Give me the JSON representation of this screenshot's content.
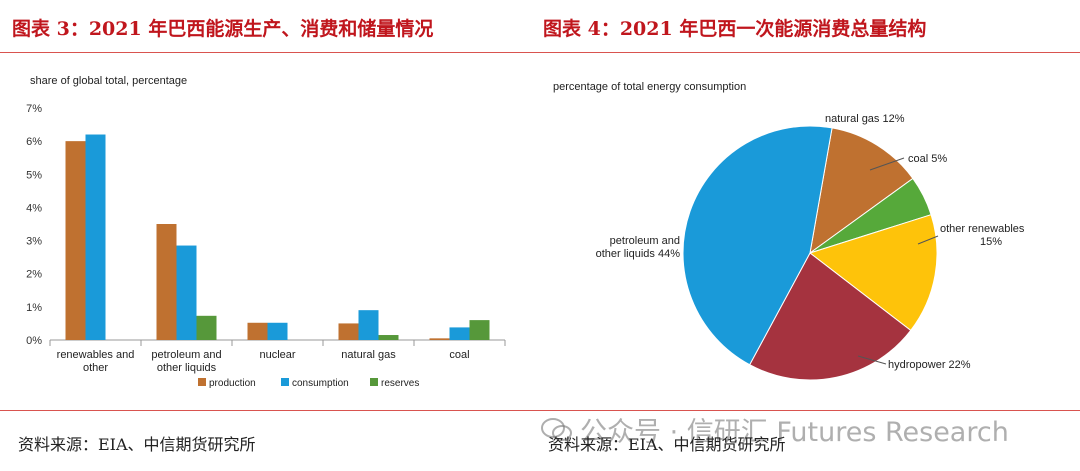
{
  "figures": {
    "left_title": "图表 3：2021 年巴西能源生产、消费和储量情况",
    "right_title": "图表 4：2021 年巴西一次能源消费总量结构",
    "left_source": "资料来源：EIA、中信期货研究所",
    "right_source": "资料来源：EIA、中信期货研究所",
    "watermark": "公众号 · 信研汇 Futures Research"
  },
  "chart_data": [
    {
      "type": "bar",
      "subtitle": "share of global total, percentage",
      "categories": [
        "renewables and other",
        "petroleum and other liquids",
        "nuclear",
        "natural gas",
        "coal"
      ],
      "category_lines": [
        [
          "renewables and",
          "other"
        ],
        [
          "petroleum and",
          "other liquids"
        ],
        [
          "nuclear"
        ],
        [
          "natural gas"
        ],
        [
          "coal"
        ]
      ],
      "series": [
        {
          "name": "production",
          "color": "#bf7130",
          "values": [
            6.0,
            3.5,
            0.52,
            0.5,
            0.05
          ]
        },
        {
          "name": "consumption",
          "color": "#1a9ad9",
          "values": [
            6.2,
            2.85,
            0.52,
            0.9,
            0.38
          ]
        },
        {
          "name": "reserves",
          "color": "#56983a",
          "values": [
            null,
            0.73,
            null,
            0.15,
            0.6
          ]
        }
      ],
      "yticks": [
        "0%",
        "1%",
        "2%",
        "3%",
        "4%",
        "5%",
        "6%",
        "7%"
      ],
      "ylim": [
        0,
        7
      ],
      "legend_position": "bottom",
      "grid": false
    },
    {
      "type": "pie",
      "subtitle": "percentage of total energy consumption",
      "slices": [
        {
          "label": "natural gas 12%",
          "lines": [
            "natural gas 12%"
          ],
          "value": 12,
          "color": "#bf7130"
        },
        {
          "label": "coal 5%",
          "lines": [
            "coal 5%"
          ],
          "value": 5,
          "color": "#56a93a"
        },
        {
          "label": "other renewables 15%",
          "lines": [
            "other renewables",
            "15%"
          ],
          "value": 15,
          "color": "#fec30a"
        },
        {
          "label": "hydropower 22%",
          "lines": [
            "hydropower 22%"
          ],
          "value": 22,
          "color": "#a5333f"
        },
        {
          "label": "petroleum and other liquids 44%",
          "lines": [
            "petroleum and",
            "other liquids 44%"
          ],
          "value": 44,
          "color": "#1a9ad9"
        }
      ]
    }
  ]
}
